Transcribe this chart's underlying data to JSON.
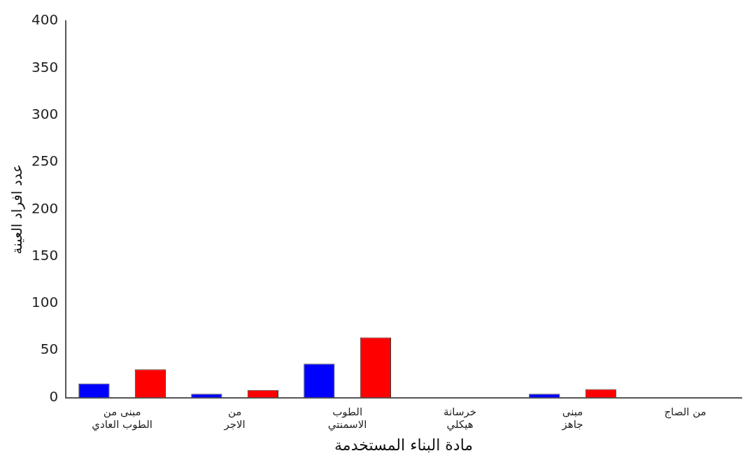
{
  "chart_data": {
    "type": "bar",
    "xlabel": "مادة البناء المستخدمة",
    "ylabel": "عدد افراد العينة",
    "categories": [
      "مبنى من\nالطوب العادي",
      "من\nالاجر",
      "الطوب\nالاسمنتي",
      "خرسانة\nهيكلي",
      "مبنى\nجاهز",
      "من الصاج"
    ],
    "series": [
      {
        "color": "#0000ff",
        "values": [
          15,
          4,
          36,
          0,
          4,
          0
        ]
      },
      {
        "color": "#ff0000",
        "values": [
          30,
          8,
          64,
          0,
          9,
          0
        ]
      }
    ],
    "ylim": [
      0,
      400
    ],
    "yticks": [
      0,
      50,
      100,
      150,
      200,
      250,
      300,
      350,
      400
    ],
    "grid": false,
    "legend": false
  }
}
